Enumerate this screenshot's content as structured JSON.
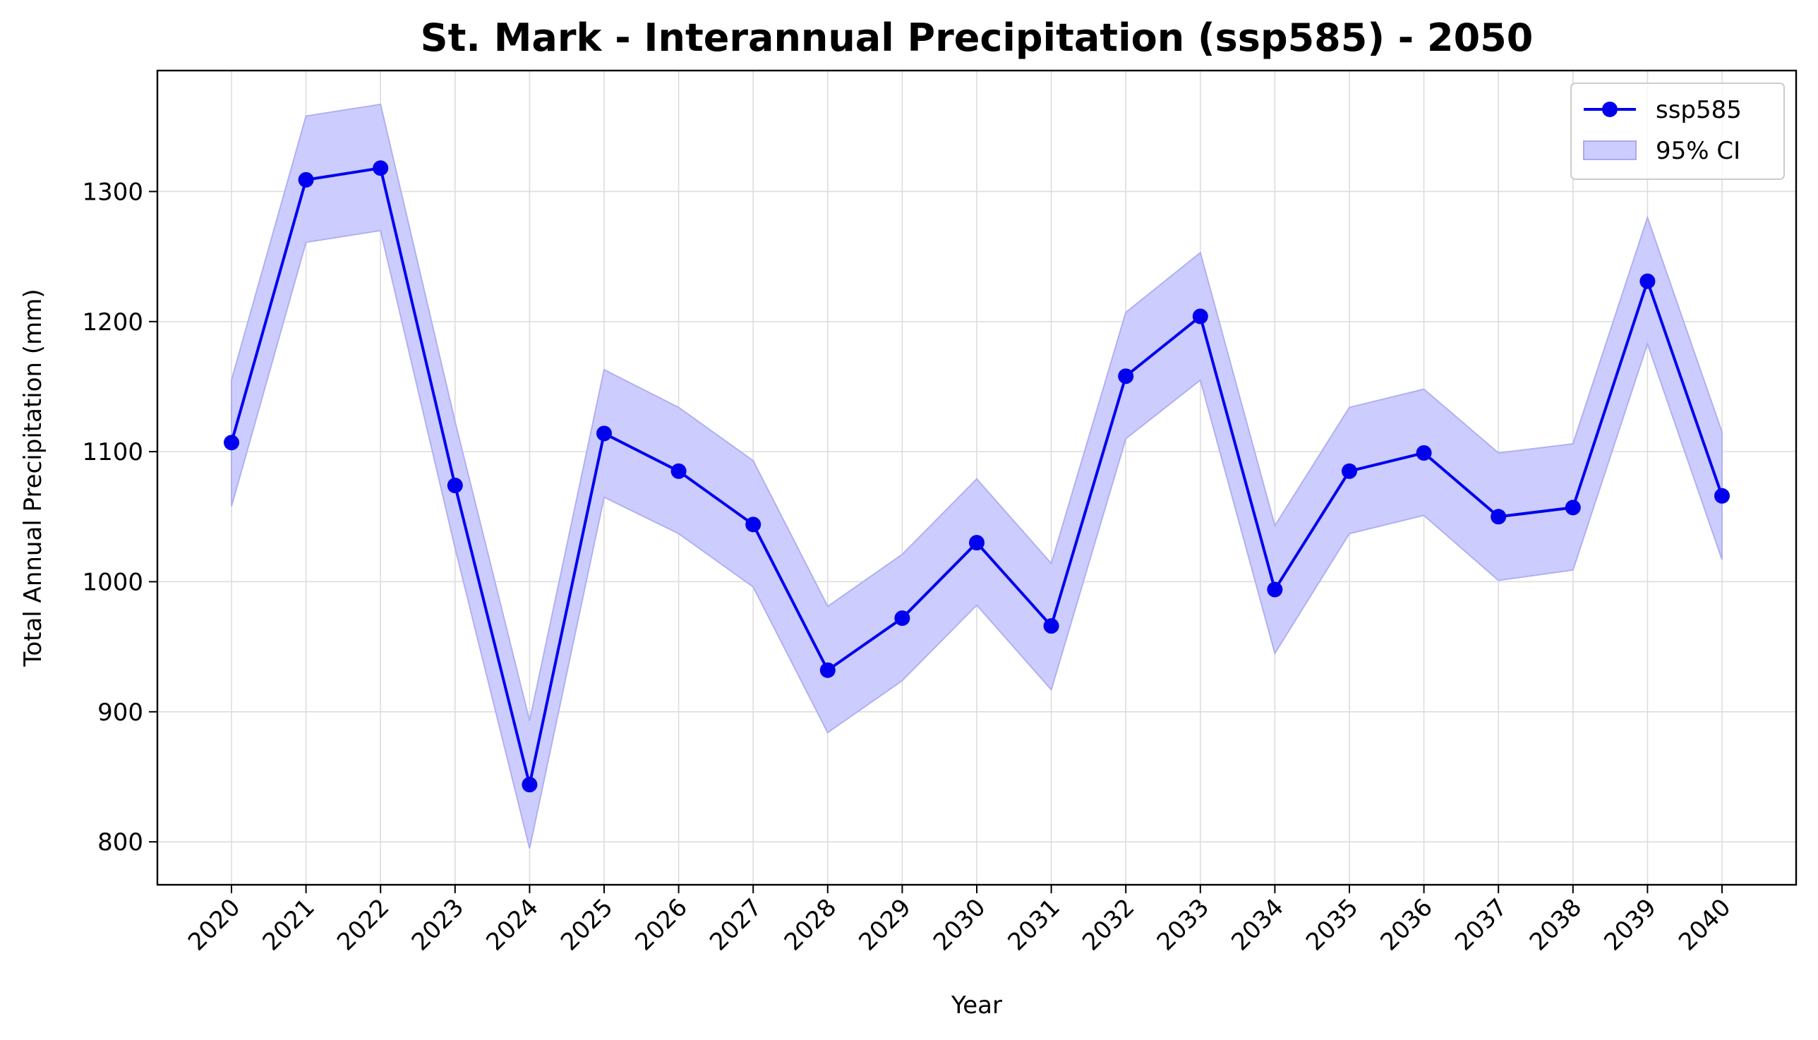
{
  "chart_data": {
    "type": "line",
    "title": "St. Mark - Interannual Precipitation (ssp585) - 2050",
    "xlabel": "Year",
    "ylabel": "Total Annual Precipitation (mm)",
    "categories": [
      "2020",
      "2021",
      "2022",
      "2023",
      "2024",
      "2025",
      "2026",
      "2027",
      "2028",
      "2029",
      "2030",
      "2031",
      "2032",
      "2033",
      "2034",
      "2035",
      "2036",
      "2037",
      "2038",
      "2039",
      "2040"
    ],
    "series": [
      {
        "name": "ssp585",
        "values": [
          1107,
          1309,
          1318,
          1074,
          844,
          1114,
          1085,
          1044,
          932,
          972,
          1030,
          966,
          1158,
          1204,
          994,
          1085,
          1099,
          1050,
          1057,
          1231,
          1066
        ],
        "color": "#0000ee",
        "marker": "circle"
      }
    ],
    "ci": {
      "name": "95% CI",
      "lower": [
        1058,
        1261,
        1270,
        1026,
        795,
        1065,
        1037,
        996,
        884,
        924,
        982,
        917,
        1110,
        1155,
        945,
        1037,
        1051,
        1001,
        1009,
        1183,
        1017
      ],
      "upper": [
        1155,
        1358,
        1367,
        1123,
        893,
        1163,
        1134,
        1093,
        981,
        1021,
        1079,
        1014,
        1207,
        1253,
        1043,
        1134,
        1148,
        1099,
        1106,
        1280,
        1115
      ],
      "color": "#ccccff"
    },
    "y_ticks": [
      "800",
      "900",
      "1000",
      "1100",
      "1200",
      "1300"
    ],
    "ylim": [
      767,
      1393
    ],
    "grid": true,
    "legend_position": "top-right"
  }
}
